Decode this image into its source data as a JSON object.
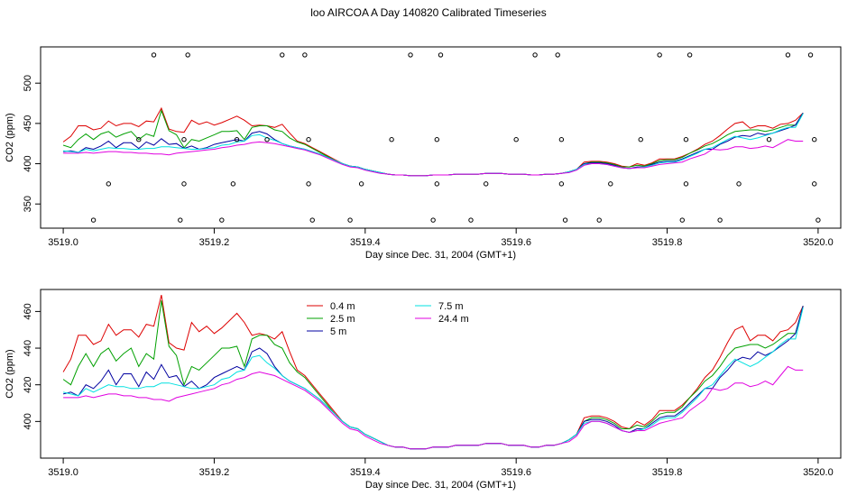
{
  "page": {
    "title": "loo AIRCOA A  Day 140820  Calibrated Timeseries"
  },
  "colors": {
    "0.4 m": "#dd0000",
    "2.5 m": "#00a000",
    "5 m": "#0000a0",
    "7.5 m": "#00e0e0",
    "24.4 m": "#e000e0"
  },
  "chart_data": [
    {
      "type": "line",
      "title": "",
      "xlabel": "Day since Dec. 31, 2004 (GMT+1)",
      "ylabel": "CO2 (ppm)",
      "xlim": [
        3518.97,
        3520.03
      ],
      "ylim": [
        320,
        545
      ],
      "x_ticks": [
        3519.0,
        3519.2,
        3519.4,
        3519.6,
        3519.8,
        3520.0
      ],
      "x_tick_labels": [
        "3519.0",
        "3519.2",
        "3519.4",
        "3519.6",
        "3519.8",
        "3520.0"
      ],
      "y_ticks": [
        350,
        400,
        450,
        500
      ],
      "y_tick_labels": [
        "350",
        "400",
        "450",
        "500"
      ],
      "grid": false,
      "legend": "none",
      "series_source": "same series as bottom panel",
      "markers": {
        "style": "open-circle",
        "points": [
          [
            3519.04,
            330
          ],
          [
            3519.06,
            375
          ],
          [
            3519.1,
            430
          ],
          [
            3519.12,
            535
          ],
          [
            3519.155,
            330
          ],
          [
            3519.16,
            375
          ],
          [
            3519.16,
            430
          ],
          [
            3519.165,
            535
          ],
          [
            3519.21,
            330
          ],
          [
            3519.225,
            375
          ],
          [
            3519.23,
            430
          ],
          [
            3519.27,
            430
          ],
          [
            3519.29,
            535
          ],
          [
            3519.32,
            535
          ],
          [
            3519.325,
            375
          ],
          [
            3519.325,
            430
          ],
          [
            3519.33,
            330
          ],
          [
            3519.38,
            330
          ],
          [
            3519.395,
            375
          ],
          [
            3519.435,
            430
          ],
          [
            3519.46,
            535
          ],
          [
            3519.49,
            330
          ],
          [
            3519.495,
            375
          ],
          [
            3519.495,
            430
          ],
          [
            3519.5,
            535
          ],
          [
            3519.54,
            330
          ],
          [
            3519.56,
            375
          ],
          [
            3519.6,
            430
          ],
          [
            3519.625,
            535
          ],
          [
            3519.655,
            535
          ],
          [
            3519.66,
            430
          ],
          [
            3519.66,
            375
          ],
          [
            3519.665,
            330
          ],
          [
            3519.71,
            330
          ],
          [
            3519.725,
            375
          ],
          [
            3519.765,
            430
          ],
          [
            3519.79,
            535
          ],
          [
            3519.82,
            330
          ],
          [
            3519.825,
            375
          ],
          [
            3519.825,
            430
          ],
          [
            3519.83,
            535
          ],
          [
            3519.87,
            330
          ],
          [
            3519.895,
            375
          ],
          [
            3519.935,
            430
          ],
          [
            3519.96,
            535
          ],
          [
            3519.99,
            535
          ],
          [
            3519.995,
            430
          ],
          [
            3519.995,
            375
          ],
          [
            3520.0,
            330
          ]
        ]
      }
    },
    {
      "type": "line",
      "title": "",
      "xlabel": "Day since Dec. 31, 2004 (GMT+1)",
      "ylabel": "CO2 (ppm)",
      "xlim": [
        3518.97,
        3520.03
      ],
      "ylim": [
        380,
        472
      ],
      "x_ticks": [
        3519.0,
        3519.2,
        3519.4,
        3519.6,
        3519.8,
        3520.0
      ],
      "x_tick_labels": [
        "3519.0",
        "3519.2",
        "3519.4",
        "3519.6",
        "3519.8",
        "3520.0"
      ],
      "y_ticks": [
        400,
        420,
        440,
        460
      ],
      "y_tick_labels": [
        "400",
        "420",
        "440",
        "460"
      ],
      "grid": false,
      "legend": "top-left",
      "x": [
        3519.0,
        3519.01,
        3519.02,
        3519.03,
        3519.04,
        3519.05,
        3519.06,
        3519.07,
        3519.08,
        3519.09,
        3519.1,
        3519.11,
        3519.12,
        3519.13,
        3519.14,
        3519.15,
        3519.16,
        3519.17,
        3519.18,
        3519.19,
        3519.2,
        3519.21,
        3519.22,
        3519.23,
        3519.24,
        3519.25,
        3519.26,
        3519.27,
        3519.28,
        3519.29,
        3519.3,
        3519.31,
        3519.32,
        3519.33,
        3519.34,
        3519.35,
        3519.36,
        3519.37,
        3519.38,
        3519.39,
        3519.4,
        3519.41,
        3519.42,
        3519.43,
        3519.44,
        3519.45,
        3519.46,
        3519.47,
        3519.48,
        3519.49,
        3519.5,
        3519.51,
        3519.52,
        3519.53,
        3519.54,
        3519.55,
        3519.56,
        3519.57,
        3519.58,
        3519.59,
        3519.6,
        3519.61,
        3519.62,
        3519.63,
        3519.64,
        3519.65,
        3519.66,
        3519.67,
        3519.68,
        3519.69,
        3519.7,
        3519.71,
        3519.72,
        3519.73,
        3519.74,
        3519.75,
        3519.76,
        3519.77,
        3519.78,
        3519.79,
        3519.8,
        3519.81,
        3519.82,
        3519.83,
        3519.84,
        3519.85,
        3519.86,
        3519.87,
        3519.88,
        3519.89,
        3519.9,
        3519.91,
        3519.92,
        3519.93,
        3519.94,
        3519.95,
        3519.96,
        3519.97,
        3519.98
      ],
      "series": [
        {
          "name": "0.4 m",
          "values": [
            427,
            434,
            447,
            447,
            442,
            444,
            453,
            447,
            450,
            450,
            446,
            453,
            452,
            469,
            443,
            440,
            439,
            454,
            449,
            452,
            448,
            451,
            455,
            459,
            454,
            447,
            448,
            447,
            445,
            449,
            438,
            428,
            425,
            420,
            415,
            410,
            405,
            400,
            397,
            396,
            393,
            391,
            389,
            387,
            386,
            386,
            385,
            385,
            385,
            386,
            386,
            386,
            387,
            387,
            387,
            387,
            388,
            388,
            388,
            387,
            387,
            387,
            386,
            386,
            387,
            387,
            388,
            390,
            393,
            402,
            403,
            403,
            402,
            400,
            397,
            396,
            400,
            398,
            401,
            406,
            406,
            406,
            409,
            413,
            418,
            424,
            428,
            435,
            443,
            450,
            452,
            444,
            447,
            447,
            444,
            449,
            450,
            454,
            463
          ]
        },
        {
          "name": "2.5 m",
          "values": [
            423,
            420,
            430,
            437,
            430,
            437,
            440,
            433,
            437,
            440,
            430,
            437,
            434,
            466,
            441,
            436,
            420,
            430,
            428,
            432,
            436,
            440,
            440,
            441,
            430,
            445,
            447,
            447,
            442,
            440,
            432,
            427,
            424,
            419,
            414,
            409,
            404,
            400,
            397,
            396,
            393,
            391,
            389,
            387,
            386,
            386,
            385,
            385,
            385,
            386,
            386,
            386,
            387,
            387,
            387,
            387,
            388,
            388,
            388,
            387,
            387,
            387,
            386,
            386,
            387,
            387,
            388,
            390,
            393,
            400,
            402,
            402,
            401,
            399,
            396,
            396,
            398,
            397,
            400,
            404,
            405,
            405,
            408,
            413,
            417,
            422,
            425,
            430,
            436,
            440,
            441,
            442,
            442,
            440,
            442,
            445,
            448,
            448,
            463
          ]
        },
        {
          "name": "5 m",
          "values": [
            415,
            416,
            414,
            420,
            418,
            422,
            428,
            420,
            426,
            426,
            419,
            427,
            423,
            431,
            424,
            425,
            419,
            422,
            418,
            420,
            424,
            426,
            428,
            430,
            428,
            438,
            440,
            437,
            430,
            425,
            422,
            420,
            418,
            415,
            412,
            408,
            404,
            400,
            397,
            396,
            393,
            391,
            389,
            387,
            386,
            386,
            385,
            385,
            385,
            386,
            386,
            386,
            387,
            387,
            387,
            387,
            388,
            388,
            388,
            387,
            387,
            387,
            386,
            386,
            387,
            387,
            388,
            390,
            393,
            400,
            401,
            401,
            400,
            398,
            395,
            394,
            396,
            396,
            399,
            402,
            403,
            403,
            406,
            410,
            414,
            418,
            418,
            424,
            428,
            433,
            435,
            434,
            438,
            436,
            438,
            441,
            444,
            448,
            463
          ]
        },
        {
          "name": "7.5 m",
          "values": [
            416,
            415,
            414,
            418,
            416,
            418,
            420,
            419,
            419,
            418,
            418,
            419,
            419,
            421,
            421,
            420,
            419,
            418,
            418,
            419,
            420,
            423,
            424,
            427,
            428,
            435,
            436,
            432,
            429,
            425,
            422,
            420,
            418,
            415,
            412,
            408,
            404,
            400,
            397,
            396,
            393,
            391,
            389,
            387,
            386,
            386,
            385,
            385,
            385,
            386,
            386,
            386,
            387,
            387,
            387,
            387,
            388,
            388,
            388,
            387,
            387,
            387,
            386,
            386,
            387,
            387,
            388,
            390,
            393,
            399,
            400,
            400,
            399,
            397,
            395,
            394,
            395,
            396,
            398,
            401,
            402,
            402,
            405,
            409,
            413,
            418,
            420,
            425,
            430,
            434,
            432,
            430,
            432,
            435,
            438,
            442,
            445,
            445,
            462
          ]
        },
        {
          "name": "24.4 m",
          "values": [
            413,
            413,
            413,
            414,
            413,
            414,
            415,
            415,
            414,
            414,
            413,
            413,
            412,
            412,
            411,
            413,
            414,
            415,
            416,
            417,
            418,
            420,
            421,
            423,
            424,
            426,
            427,
            426,
            425,
            423,
            421,
            419,
            417,
            414,
            411,
            407,
            403,
            399,
            396,
            395,
            392,
            390,
            388,
            387,
            386,
            386,
            385,
            385,
            385,
            386,
            386,
            386,
            387,
            387,
            387,
            387,
            388,
            388,
            388,
            387,
            387,
            387,
            386,
            386,
            387,
            387,
            388,
            389,
            392,
            398,
            400,
            400,
            399,
            397,
            395,
            394,
            395,
            395,
            397,
            399,
            400,
            401,
            402,
            406,
            409,
            412,
            418,
            417,
            418,
            421,
            421,
            419,
            420,
            422,
            420,
            425,
            430,
            428,
            428
          ]
        }
      ]
    }
  ]
}
